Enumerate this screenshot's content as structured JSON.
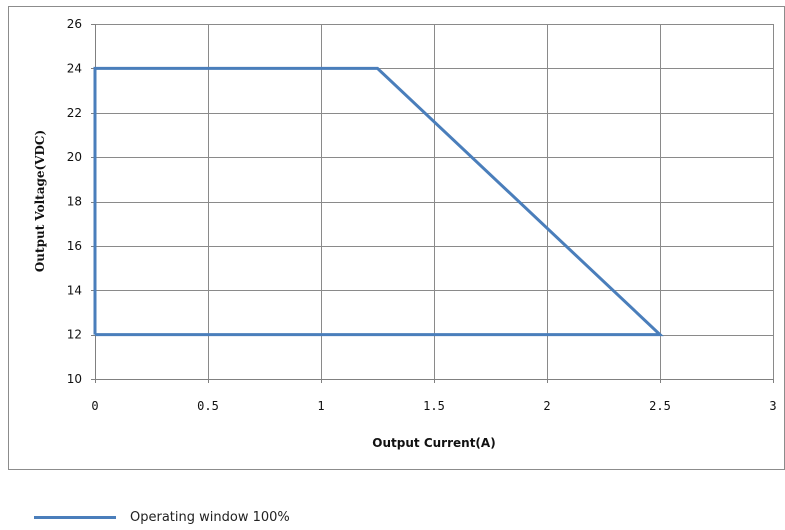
{
  "chart_data": {
    "type": "line",
    "xlabel": "Output Current(A)",
    "ylabel": "Output Voltage(VDC)",
    "xlim": [
      0,
      3
    ],
    "ylim": [
      10,
      26
    ],
    "xticks": [
      0,
      0.5,
      1,
      1.5,
      2,
      2.5,
      3
    ],
    "xtick_labels": [
      "0",
      "0.5",
      "1",
      "1.5",
      "2",
      "2.5",
      "3"
    ],
    "yticks": [
      10,
      12,
      14,
      16,
      18,
      20,
      22,
      24,
      26
    ],
    "ytick_labels": [
      "10",
      "12",
      "14",
      "16",
      "18",
      "20",
      "22",
      "24",
      "26"
    ],
    "grid": true,
    "legend_position": "bottom-left",
    "series": [
      {
        "name": "Operating window 100%",
        "color": "#4a7ebb",
        "x": [
          0,
          0,
          1.25,
          2.5,
          0
        ],
        "y": [
          12,
          24,
          24,
          12,
          12
        ]
      }
    ]
  }
}
